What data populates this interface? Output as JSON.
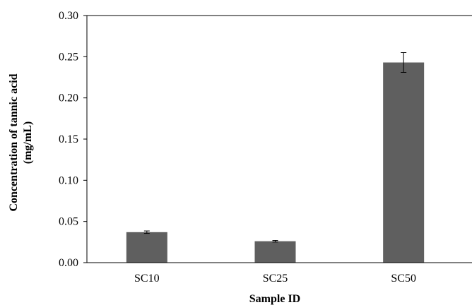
{
  "chart_data": {
    "type": "bar",
    "categories": [
      "SC10",
      "SC25",
      "SC50"
    ],
    "values": [
      0.037,
      0.026,
      0.243
    ],
    "error": [
      0.0015,
      0.001,
      0.012
    ],
    "xlabel": "Sample ID",
    "ylabel_line1": "Concentration of tannic acid",
    "ylabel_line2": "(mg/mL)",
    "ylim": [
      0,
      0.3
    ],
    "yticks": [
      "0.00",
      "0.05",
      "0.10",
      "0.15",
      "0.20",
      "0.25",
      "0.30"
    ],
    "bar_color": "#5f5f5f",
    "grid": false,
    "legend": "none"
  }
}
